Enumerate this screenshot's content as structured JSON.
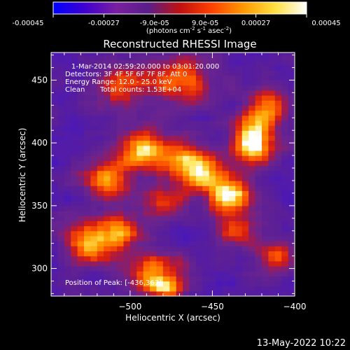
{
  "colorbar": {
    "ticks": [
      "-0.00045",
      "-0.00027",
      "-9.0e-05",
      "9.0e-05",
      "0.00027",
      "0.00045"
    ],
    "tick_values": [
      -0.00045,
      -0.00027,
      -9e-05,
      9e-05,
      0.00027,
      0.00045
    ],
    "range": [
      -0.00045,
      0.00045
    ],
    "units_html": "(photons cm<tspan dy='-4' font-size='7'>-2</tspan><tspan dy='4'> s</tspan><tspan dy='-4' font-size='7'>-1</tspan><tspan dy='4'> asec</tspan><tspan dy='-4' font-size='7'>-2</tspan><tspan dy='4'>)</tspan>",
    "units": "(photons cm-2 s-1 asec-2)",
    "colors": [
      "#0000ff",
      "#4000d0",
      "#7a1fa0",
      "#5a1e8a",
      "#c01010",
      "#ff4000",
      "#ff9900",
      "#ffe040",
      "#ffffff"
    ]
  },
  "chart_data": {
    "type": "heatmap",
    "title": "Reconstructed RHESSI Image",
    "xlabel": "Heliocentric X (arcsec)",
    "ylabel": "Heliocentric Y (arcsec)",
    "xlim": [
      -548,
      -400
    ],
    "ylim": [
      278,
      472
    ],
    "x_ticks": [
      -500,
      -450,
      -400
    ],
    "y_ticks": [
      300,
      350,
      400,
      450
    ],
    "annotations": {
      "line1": "1-Mar-2014 02:59:20.000 to 03:01:20.000",
      "line2": "Detectors: 3F 4F 5F 6F 7F 8F, Att 0",
      "line3": "Energy Range: 12.0 - 25.0 keV",
      "line4_a": "Clean",
      "line4_b": "Total counts: 1.53E+04",
      "peak": "Position of Peak: [-436,367]"
    },
    "peak_position": [
      -436,
      367
    ],
    "ridges": [
      {
        "x": -440,
        "y": 358,
        "amp": 1.0,
        "sx": 9,
        "sy": 9
      },
      {
        "x": -455,
        "y": 375,
        "amp": 0.75,
        "sx": 12,
        "sy": 10
      },
      {
        "x": -425,
        "y": 410,
        "amp": 0.85,
        "sx": 9,
        "sy": 12
      },
      {
        "x": -415,
        "y": 432,
        "amp": 0.7,
        "sx": 8,
        "sy": 10
      },
      {
        "x": -470,
        "y": 390,
        "amp": 0.7,
        "sx": 12,
        "sy": 10
      },
      {
        "x": -495,
        "y": 395,
        "amp": 0.8,
        "sx": 10,
        "sy": 12
      },
      {
        "x": -515,
        "y": 370,
        "amp": 0.75,
        "sx": 10,
        "sy": 12
      },
      {
        "x": -525,
        "y": 320,
        "amp": 0.85,
        "sx": 10,
        "sy": 12
      },
      {
        "x": -505,
        "y": 330,
        "amp": 0.65,
        "sx": 10,
        "sy": 10
      },
      {
        "x": -480,
        "y": 355,
        "amp": 0.6,
        "sx": 10,
        "sy": 10
      },
      {
        "x": -470,
        "y": 450,
        "amp": 0.75,
        "sx": 14,
        "sy": 14
      },
      {
        "x": -505,
        "y": 445,
        "amp": 0.6,
        "sx": 10,
        "sy": 12
      },
      {
        "x": -485,
        "y": 300,
        "amp": 0.7,
        "sx": 12,
        "sy": 10
      },
      {
        "x": -480,
        "y": 285,
        "amp": 0.75,
        "sx": 10,
        "sy": 6
      },
      {
        "x": -435,
        "y": 330,
        "amp": 0.55,
        "sx": 10,
        "sy": 10
      },
      {
        "x": -410,
        "y": 310,
        "amp": 0.6,
        "sx": 8,
        "sy": 10
      },
      {
        "x": -425,
        "y": 395,
        "amp": 0.55,
        "sx": 10,
        "sy": 10
      }
    ]
  },
  "footer_date": "13-May-2022 10:22"
}
